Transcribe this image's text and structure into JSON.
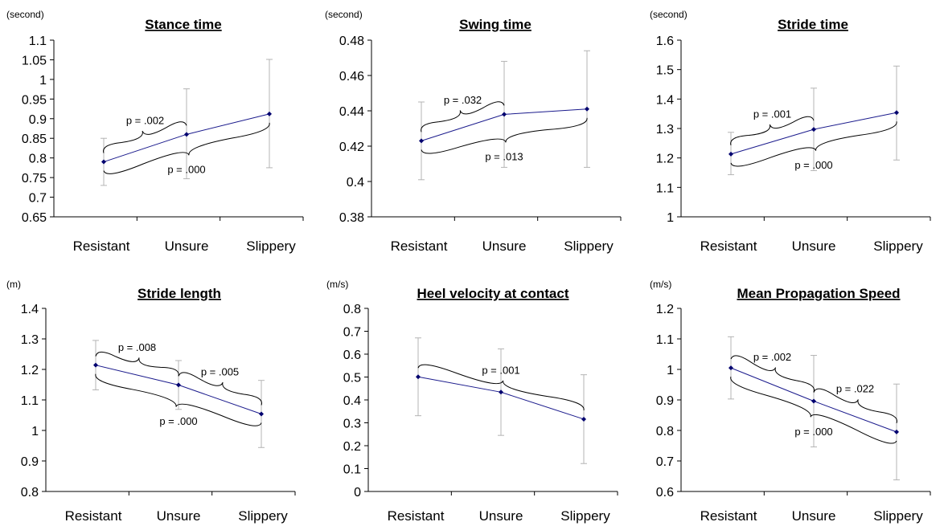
{
  "colors": {
    "line": "#1a1a8c",
    "marker": "#00006e",
    "error_bar": "#b4b4b4",
    "axis": "#000000"
  },
  "chart_data": [
    {
      "type": "line",
      "title": "Stance time",
      "unit": "(second)",
      "categories": [
        "Resistant",
        "Unsure",
        "Slippery"
      ],
      "ylim": [
        0.65,
        1.1
      ],
      "yticks": [
        0.65,
        0.7,
        0.75,
        0.8,
        0.85,
        0.9,
        0.95,
        1,
        1.05,
        1.1
      ],
      "ytick_labels": [
        "0.65",
        "0.7",
        "0.75",
        "0.8",
        "0.85",
        "0.9",
        "0.95",
        "1",
        "1.05",
        "1.1"
      ],
      "values": [
        0.79,
        0.86,
        0.912
      ],
      "error_low": [
        0.73,
        0.747,
        0.775
      ],
      "error_high": [
        0.85,
        0.976,
        1.051
      ],
      "annotations": [
        {
          "text": "p = .002",
          "from": 0,
          "to": 1,
          "side": "above"
        },
        {
          "text": "p = .000",
          "from": 0,
          "to": 2,
          "side": "below"
        }
      ]
    },
    {
      "type": "line",
      "title": "Swing time",
      "unit": "(second)",
      "categories": [
        "Resistant",
        "Unsure",
        "Slippery"
      ],
      "ylim": [
        0.38,
        0.48
      ],
      "yticks": [
        0.38,
        0.4,
        0.42,
        0.44,
        0.46,
        0.48
      ],
      "ytick_labels": [
        "0.38",
        "0.4",
        "0.42",
        "0.44",
        "0.46",
        "0.48"
      ],
      "values": [
        0.423,
        0.438,
        0.441
      ],
      "error_low": [
        0.401,
        0.408,
        0.408
      ],
      "error_high": [
        0.445,
        0.468,
        0.474
      ],
      "annotations": [
        {
          "text": "p = .032",
          "from": 0,
          "to": 1,
          "side": "above"
        },
        {
          "text": "p = .013",
          "from": 0,
          "to": 2,
          "side": "below"
        }
      ]
    },
    {
      "type": "line",
      "title": "Stride time",
      "unit": "(second)",
      "categories": [
        "Resistant",
        "Unsure",
        "Slippery"
      ],
      "ylim": [
        1,
        1.6
      ],
      "yticks": [
        1,
        1.1,
        1.2,
        1.3,
        1.4,
        1.5,
        1.6
      ],
      "ytick_labels": [
        "1",
        "1.1",
        "1.2",
        "1.3",
        "1.4",
        "1.5",
        "1.6"
      ],
      "values": [
        1.213,
        1.297,
        1.354
      ],
      "error_low": [
        1.143,
        1.157,
        1.193
      ],
      "error_high": [
        1.287,
        1.437,
        1.512
      ],
      "annotations": [
        {
          "text": "p = .001",
          "from": 0,
          "to": 1,
          "side": "above"
        },
        {
          "text": "p = .000",
          "from": 0,
          "to": 2,
          "side": "below"
        }
      ]
    },
    {
      "type": "line",
      "title": "Stride length",
      "unit": "(m)",
      "categories": [
        "Resistant",
        "Unsure",
        "Slippery"
      ],
      "ylim": [
        0.8,
        1.4
      ],
      "yticks": [
        0.8,
        0.9,
        1,
        1.1,
        1.2,
        1.3,
        1.4
      ],
      "ytick_labels": [
        "0.8",
        "0.9",
        "1",
        "1.1",
        "1.2",
        "1.3",
        "1.4"
      ],
      "values": [
        1.214,
        1.149,
        1.054
      ],
      "error_low": [
        1.133,
        1.069,
        0.944
      ],
      "error_high": [
        1.295,
        1.229,
        1.164
      ],
      "annotations": [
        {
          "text": "p = .008",
          "from": 0,
          "to": 1,
          "side": "above"
        },
        {
          "text": "p = .005",
          "from": 1,
          "to": 2,
          "side": "above"
        },
        {
          "text": "p = .000",
          "from": 0,
          "to": 2,
          "side": "below"
        }
      ]
    },
    {
      "type": "line",
      "title": "Heel velocity at contact",
      "unit": "(m/s)",
      "categories": [
        "Resistant",
        "Unsure",
        "Slippery"
      ],
      "ylim": [
        0,
        0.8
      ],
      "yticks": [
        0,
        0.1,
        0.2,
        0.3,
        0.4,
        0.5,
        0.6,
        0.7,
        0.8
      ],
      "ytick_labels": [
        "0",
        "0.1",
        "0.2",
        "0.3",
        "0.4",
        "0.5",
        "0.6",
        "0.7",
        "0.8"
      ],
      "values": [
        0.501,
        0.434,
        0.316
      ],
      "error_low": [
        0.331,
        0.245,
        0.122
      ],
      "error_high": [
        0.671,
        0.623,
        0.51
      ],
      "annotations": [
        {
          "text": "p = .001",
          "from": 0,
          "to": 2,
          "side": "above"
        }
      ]
    },
    {
      "type": "line",
      "title": "Mean Propagation Speed",
      "unit": "(m/s)",
      "categories": [
        "Resistant",
        "Unsure",
        "Slippery"
      ],
      "ylim": [
        0.6,
        1.2
      ],
      "yticks": [
        0.6,
        0.7,
        0.8,
        0.9,
        1,
        1.1,
        1.2
      ],
      "ytick_labels": [
        "0.6",
        "0.7",
        "0.8",
        "0.9",
        "1",
        "1.1",
        "1.2"
      ],
      "values": [
        1.005,
        0.896,
        0.795
      ],
      "error_low": [
        0.903,
        0.746,
        0.638
      ],
      "error_high": [
        1.107,
        1.046,
        0.952
      ],
      "annotations": [
        {
          "text": "p = .002",
          "from": 0,
          "to": 1,
          "side": "above"
        },
        {
          "text": "p = .022",
          "from": 1,
          "to": 2,
          "side": "above"
        },
        {
          "text": "p = .000",
          "from": 0,
          "to": 2,
          "side": "below"
        }
      ]
    }
  ]
}
